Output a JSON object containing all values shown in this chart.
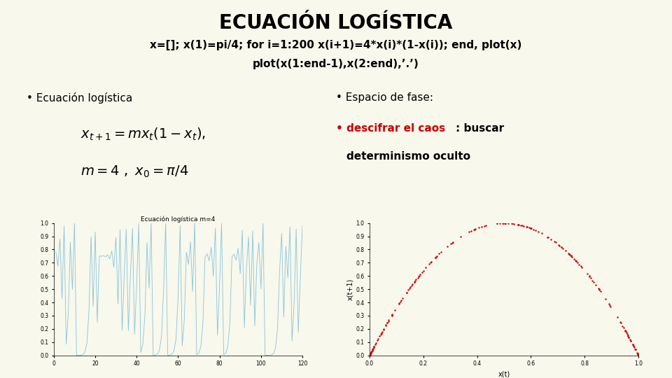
{
  "title": "ECUACIÓN LOGÍSTICA",
  "subtitle1": "x=[]; x(1)=pi/4; for i=1:200 x(i+1)=4*x(i)*(1-x(i)); end, plot(x)",
  "subtitle2": "plot(x(1:end-1),x(2:end),’.’)",
  "bg_color": "#f8f8ec",
  "bullet1": "• Ecuación logística",
  "bullet3": "• Espacio de fase:",
  "bullet2_red": "• descifrar el caos",
  "bullet2_suffix": ": buscar",
  "bullet2_line2": "  determinismo oculto",
  "plot1_title": "Ecuación logística m=4",
  "plot1_color": "#88c4dc",
  "plot2_color": "#cc0000",
  "plot2_xlabel": "x(t)",
  "plot2_ylabel": "x(t+1)",
  "formula1": "$x_{t+1} = mx_t\\left(1-x_t\\right),$",
  "formula2": "$m = 4\\ ,\\ x_0 = \\pi / 4$"
}
